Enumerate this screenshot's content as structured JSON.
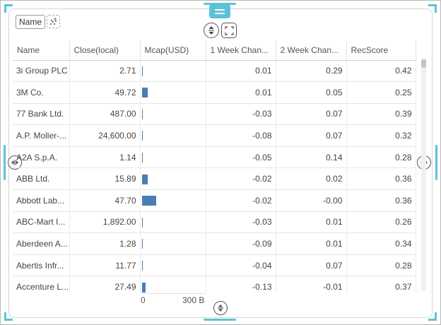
{
  "toolbar": {
    "name_chip": "Name",
    "add_viz_icon": "scatter-plus-icon",
    "sort_icon": "sort-up-down-icon",
    "fullscreen_icon": "expand-icon"
  },
  "table": {
    "columns": [
      "Name",
      "Close(local)",
      "Mcap(USD)",
      "1 Week Chan...",
      "2 Week Chan...",
      "RecScore"
    ],
    "rows": [
      {
        "name": "3i Group PLC",
        "close": "2.71",
        "mcap": 0.0,
        "w1": "0.01",
        "w2": "0.29",
        "rec": "0.42"
      },
      {
        "name": "3M Co.",
        "close": "49.72",
        "mcap": 0.36,
        "w1": "0.01",
        "w2": "0.05",
        "rec": "0.25"
      },
      {
        "name": "77 Bank Ltd.",
        "close": "487.00",
        "mcap": 0.05,
        "w1": "-0.03",
        "w2": "0.07",
        "rec": "0.39"
      },
      {
        "name": "A.P. Moller-...",
        "close": "24,600.00",
        "mcap": 0.05,
        "w1": "-0.08",
        "w2": "0.07",
        "rec": "0.32"
      },
      {
        "name": "A2A S.p.A.",
        "close": "1.14",
        "mcap": 0.05,
        "w1": "-0.05",
        "w2": "0.14",
        "rec": "0.28"
      },
      {
        "name": "ABB Ltd.",
        "close": "15.89",
        "mcap": 0.36,
        "w1": "-0.02",
        "w2": "0.02",
        "rec": "0.36"
      },
      {
        "name": "Abbott Lab...",
        "close": "47.70",
        "mcap": 0.86,
        "w1": "-0.02",
        "w2": "-0.00",
        "rec": "0.36"
      },
      {
        "name": "ABC-Mart I...",
        "close": "1,892.00",
        "mcap": 0.0,
        "w1": "-0.03",
        "w2": "0.01",
        "rec": "0.26"
      },
      {
        "name": "Aberdeen A...",
        "close": "1.28",
        "mcap": 0.0,
        "w1": "-0.09",
        "w2": "0.01",
        "rec": "0.34"
      },
      {
        "name": "Abertis Infr...",
        "close": "11.77",
        "mcap": 0.05,
        "w1": "-0.04",
        "w2": "0.07",
        "rec": "0.28"
      },
      {
        "name": "Accenture L...",
        "close": "27.49",
        "mcap": 0.23,
        "w1": "-0.13",
        "w2": "-0.01",
        "rec": "0.37"
      }
    ]
  },
  "axis": {
    "min_label": "0",
    "max_label": "300 B"
  },
  "colors": {
    "bar": "#4a7db3",
    "accent": "#5cc3d6"
  }
}
